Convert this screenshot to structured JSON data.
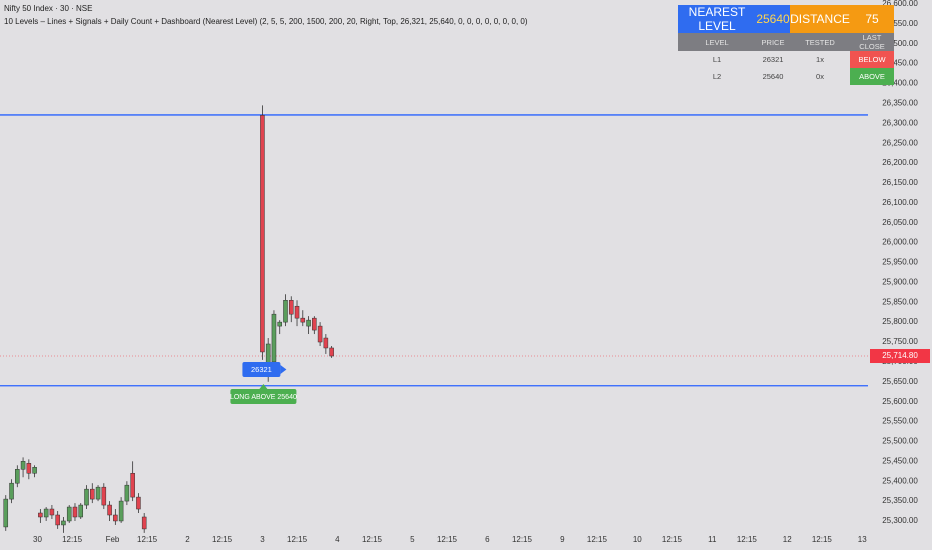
{
  "header": {
    "symbol": "Nifty 50 Index · 30 · NSE",
    "indicator": "10 Levels – Lines + Signals + Daily Count + Dashboard (Nearest Level) (2, 5, 5, 200, 1500, 200, 20, Right, Top, 26,321, 25,640, 0, 0, 0, 0, 0, 0, 0, 0)"
  },
  "dashboard": {
    "title": [
      "NEAREST LEVEL",
      "25640",
      "DISTANCE",
      "75"
    ],
    "columns": [
      "LEVEL",
      "PRICE",
      "TESTED",
      "LAST CLOSE"
    ],
    "rows": [
      [
        "L1",
        "26321",
        "1x",
        "BELOW"
      ],
      [
        "L2",
        "25640",
        "0x",
        "ABOVE"
      ]
    ]
  },
  "chart_data": {
    "type": "candlestick",
    "x": [
      1,
      2,
      3,
      4,
      5,
      6,
      7,
      8,
      9,
      10,
      11,
      12,
      13,
      14,
      15,
      16,
      17,
      18,
      19,
      20,
      21,
      22,
      23,
      24,
      25,
      45.5,
      46.5,
      47.5,
      48.5,
      49.5,
      50.5,
      51.5,
      52.5,
      53.5,
      54.5,
      55.5,
      56.5,
      57.5
    ],
    "open": [
      25285,
      25355,
      25395,
      25430,
      25445,
      25420,
      25320,
      25310,
      25330,
      25315,
      25290,
      25300,
      25335,
      25310,
      25340,
      25380,
      25355,
      25385,
      25340,
      25315,
      25300,
      25350,
      25420,
      25360,
      25310,
      26320,
      25680,
      25700,
      25790,
      25800,
      25855,
      25840,
      25810,
      25790,
      25810,
      25790,
      25760,
      25735
    ],
    "high": [
      25365,
      25405,
      25440,
      25460,
      25455,
      25440,
      25330,
      25335,
      25340,
      25325,
      25310,
      25340,
      25345,
      25345,
      25390,
      25395,
      25390,
      25395,
      25350,
      25330,
      25360,
      25400,
      25450,
      25370,
      25320,
      26345,
      25760,
      25830,
      25805,
      25870,
      25865,
      25855,
      25830,
      25815,
      25815,
      25800,
      25770,
      25740
    ],
    "low": [
      25275,
      25345,
      25385,
      25410,
      25405,
      25410,
      25295,
      25300,
      25305,
      25280,
      25270,
      25295,
      25300,
      25305,
      25330,
      25345,
      25350,
      25330,
      25300,
      25290,
      25295,
      25340,
      25350,
      25320,
      25270,
      25705,
      25650,
      25690,
      25770,
      25790,
      25800,
      25790,
      25790,
      25770,
      25770,
      25740,
      25720,
      25710
    ],
    "close": [
      25355,
      25395,
      25430,
      25450,
      25420,
      25435,
      25310,
      25330,
      25315,
      25290,
      25300,
      25335,
      25310,
      25340,
      25380,
      25355,
      25385,
      25340,
      25315,
      25300,
      25350,
      25390,
      25360,
      25330,
      25280,
      25725,
      25745,
      25820,
      25800,
      25855,
      25820,
      25810,
      25800,
      25805,
      25780,
      25750,
      25735,
      25714.8
    ],
    "up_color": "#5a9e5c",
    "down_color": "#e0434f",
    "xlim": [
      0,
      150.5
    ],
    "xticks": [
      {
        "value": 6.5,
        "label": "30"
      },
      {
        "value": 12.5,
        "label": "12:15"
      },
      {
        "value": 19.5,
        "label": "Feb"
      },
      {
        "value": 25.5,
        "label": "12:15"
      },
      {
        "value": 32.5,
        "label": "2"
      },
      {
        "value": 38.5,
        "label": "12:15"
      },
      {
        "value": 45.5,
        "label": "3"
      },
      {
        "value": 51.5,
        "label": "12:15"
      },
      {
        "value": 58.5,
        "label": "4"
      },
      {
        "value": 64.5,
        "label": "12:15"
      },
      {
        "value": 71.5,
        "label": "5"
      },
      {
        "value": 77.5,
        "label": "12:15"
      },
      {
        "value": 84.5,
        "label": "6"
      },
      {
        "value": 90.5,
        "label": "12:15"
      },
      {
        "value": 97.5,
        "label": "9"
      },
      {
        "value": 103.5,
        "label": "12:15"
      },
      {
        "value": 110.5,
        "label": "10"
      },
      {
        "value": 116.5,
        "label": "12:15"
      },
      {
        "value": 123.5,
        "label": "11"
      },
      {
        "value": 129.5,
        "label": "12:15"
      },
      {
        "value": 136.5,
        "label": "12"
      },
      {
        "value": 142.5,
        "label": "12:15"
      },
      {
        "value": 149.5,
        "label": "13"
      }
    ],
    "ylim": [
      25227,
      26610
    ],
    "yticks": [
      {
        "value": 25300,
        "label": "25,300.00"
      },
      {
        "value": 25350,
        "label": "25,350.00"
      },
      {
        "value": 25400,
        "label": "25,400.00"
      },
      {
        "value": 25450,
        "label": "25,450.00"
      },
      {
        "value": 25500,
        "label": "25,500.00"
      },
      {
        "value": 25550,
        "label": "25,550.00"
      },
      {
        "value": 25600,
        "label": "25,600.00"
      },
      {
        "value": 25650,
        "label": "25,650.00"
      },
      {
        "value": 25700,
        "label": "25,700.00"
      },
      {
        "value": 25750,
        "label": "25,750.00"
      },
      {
        "value": 25800,
        "label": "25,800.00"
      },
      {
        "value": 25850,
        "label": "25,850.00"
      },
      {
        "value": 25900,
        "label": "25,900.00"
      },
      {
        "value": 25950,
        "label": "25,950.00"
      },
      {
        "value": 26000,
        "label": "26,000.00"
      },
      {
        "value": 26050,
        "label": "26,050.00"
      },
      {
        "value": 26100,
        "label": "26,100.00"
      },
      {
        "value": 26150,
        "label": "26,150.00"
      },
      {
        "value": 26200,
        "label": "26,200.00"
      },
      {
        "value": 26250,
        "label": "26,250.00"
      },
      {
        "value": 26300,
        "label": "26,300.00"
      },
      {
        "value": 26350,
        "label": "26,350.00"
      },
      {
        "value": 26400,
        "label": "26,400.00"
      },
      {
        "value": 26450,
        "label": "26,450.00"
      },
      {
        "value": 26500,
        "label": "26,500.00"
      },
      {
        "value": 26550,
        "label": "26,550.00"
      },
      {
        "value": 26600,
        "label": "26,600.00"
      }
    ],
    "grid": false,
    "levels": [
      26321,
      25640
    ],
    "level_color": "#2962ff",
    "last_price": {
      "value": 25714.8,
      "label": "25,714.80"
    },
    "last_price_color": "#f23645",
    "annotations": [
      "26321",
      "LONG ABOVE 25640"
    ]
  }
}
